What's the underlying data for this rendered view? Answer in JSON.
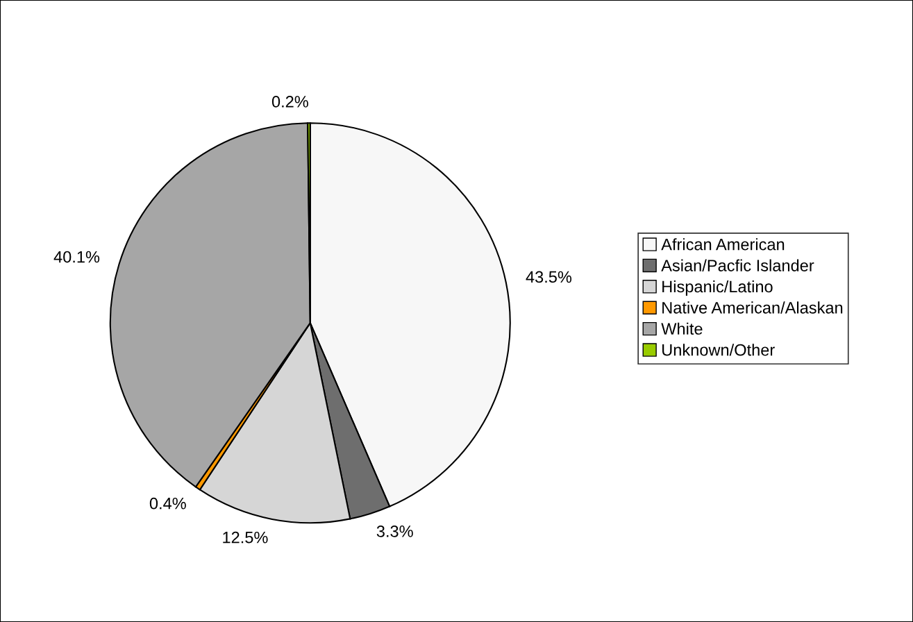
{
  "chart_data": {
    "type": "pie",
    "categories": [
      "African American",
      "Asian/Pacfic Islander",
      "Hispanic/Latino",
      "Native American/Alaskan",
      "White",
      "Unknown/Other"
    ],
    "values": [
      43.5,
      3.3,
      12.5,
      0.4,
      40.1,
      0.2
    ],
    "value_labels": [
      "43.5%",
      "3.3%",
      "12.5%",
      "0.4%",
      "40.1%",
      "0.2%"
    ],
    "colors": [
      "#f7f7f7",
      "#6e6e6e",
      "#d6d6d6",
      "#ff9900",
      "#a6a6a6",
      "#99cc00"
    ],
    "legend": "right"
  }
}
